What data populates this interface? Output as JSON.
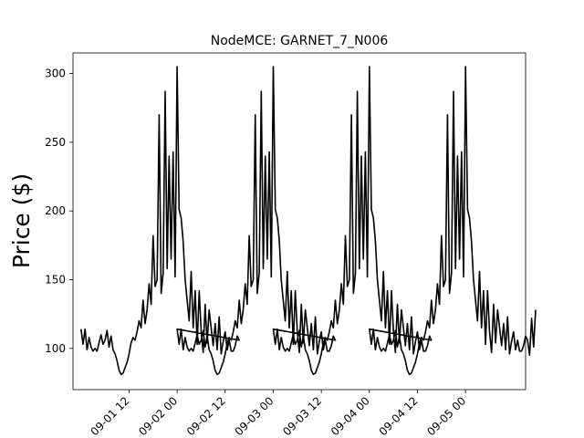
{
  "chart_data": {
    "type": "line",
    "title": "NodeMCE: GARNET_7_N006",
    "xlabel": "",
    "ylabel": "Price ($)",
    "ylim": [
      70,
      315
    ],
    "yticks": [
      100,
      150,
      200,
      250,
      300
    ],
    "xlim": [
      "2018-08-31 22:00",
      "2018-09-05 15:00"
    ],
    "xticks": [
      {
        "value": "2018-09-01 12:00",
        "label": "09-01 12"
      },
      {
        "value": "2018-09-02 00:00",
        "label": "09-02 00"
      },
      {
        "value": "2018-09-02 12:00",
        "label": "09-02 12"
      },
      {
        "value": "2018-09-03 00:00",
        "label": "09-03 00"
      },
      {
        "value": "2018-09-03 12:00",
        "label": "09-03 12"
      },
      {
        "value": "2018-09-04 00:00",
        "label": "09-04 00"
      },
      {
        "value": "2018-09-04 12:00",
        "label": "09-04 12"
      },
      {
        "value": "2018-09-05 00:00",
        "label": "09-05 00"
      }
    ],
    "grid": false,
    "series": [
      {
        "color": "#000000",
        "daily_pattern_start": "2018-09-01 00:00",
        "daily_pattern_interval_minutes": 30,
        "days": 4,
        "daily_values": [
          114,
          103,
          114,
          99,
          108,
          101,
          98,
          100,
          98,
          104,
          110,
          103,
          106,
          113,
          101,
          109,
          99,
          96,
          91,
          84,
          81,
          82,
          86,
          90,
          96,
          104,
          108,
          106,
          112,
          120,
          115,
          135,
          118,
          128,
          147,
          132,
          182,
          145,
          150,
          270,
          140,
          155,
          287,
          158,
          240,
          165,
          243,
          152,
          305,
          201,
          195,
          178,
          150,
          135,
          120,
          156,
          115,
          142,
          103,
          142,
          112,
          97,
          132,
          104,
          128,
          115,
          102,
          118,
          99,
          123,
          96,
          105,
          112,
          99,
          106,
          98,
          98,
          102,
          109,
          106
        ],
        "final_values": [
          95,
          122,
          101,
          128
        ]
      }
    ]
  }
}
